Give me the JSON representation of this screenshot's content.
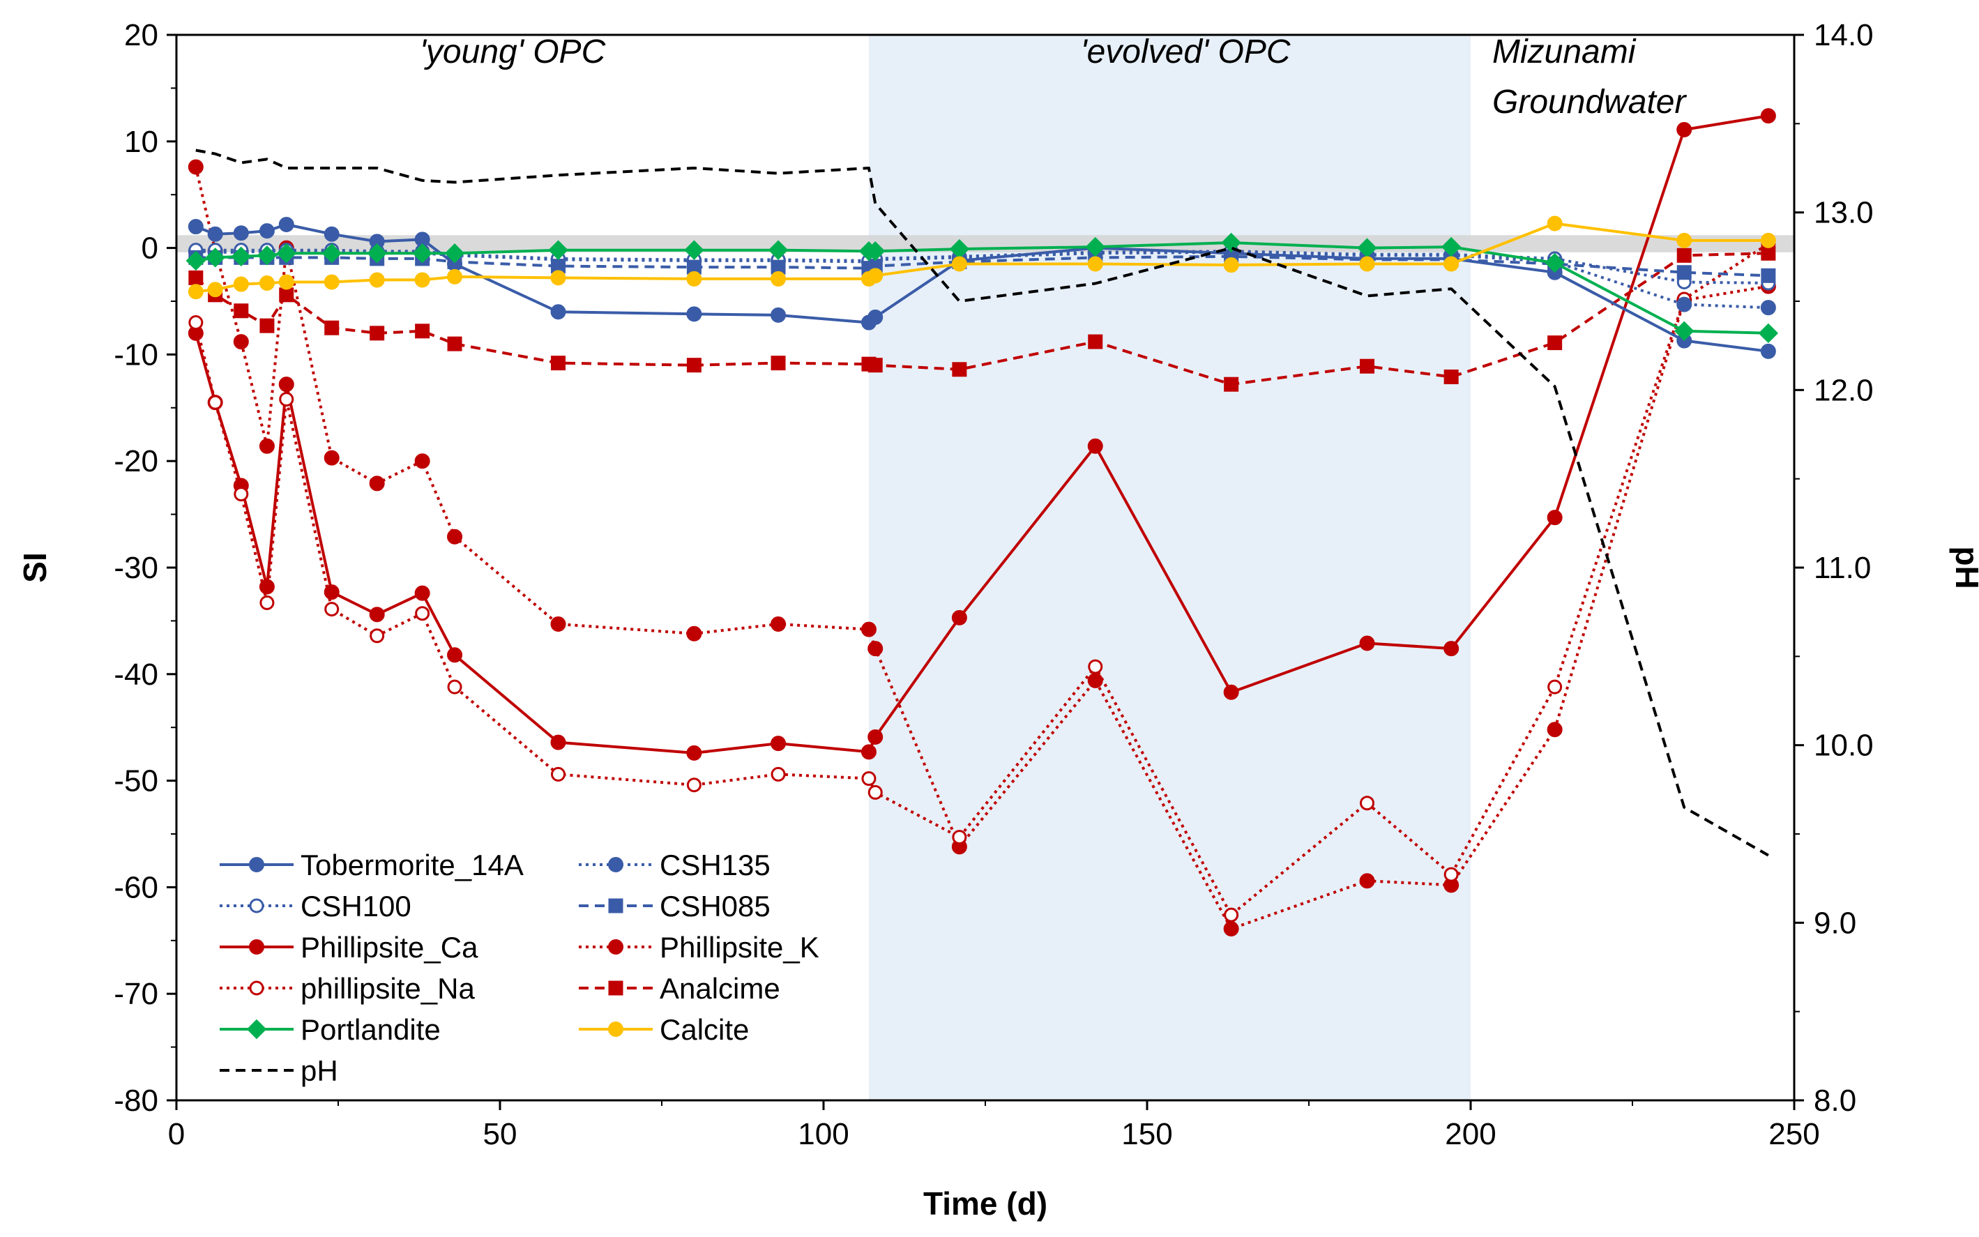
{
  "chart_data": {
    "type": "line",
    "xlabel": "Time (d)",
    "ylabel": "SI",
    "y2label": "pH",
    "xlim": [
      0,
      250
    ],
    "ylim": [
      -80,
      20
    ],
    "y2lim": [
      8.0,
      14.0
    ],
    "x_ticks": [
      "0",
      "50",
      "100",
      "150",
      "200",
      "250"
    ],
    "y_ticks": [
      "-80",
      "-70",
      "-60",
      "-50",
      "-40",
      "-30",
      "-20",
      "-10",
      "0",
      "10",
      "20"
    ],
    "y2_ticks": [
      "8.0",
      "9.0",
      "10.0",
      "11.0",
      "12.0",
      "13.0",
      "14.0"
    ],
    "regions": [
      {
        "label": "'young' OPC",
        "x": [
          0,
          107
        ]
      },
      {
        "label": "'evolved' OPC",
        "x": [
          107,
          200
        ],
        "shaded": true
      },
      {
        "label": "Mizunami",
        "label2": "Groundwater",
        "x": [
          200,
          250
        ]
      }
    ],
    "legend_position": "bottom-left",
    "series": [
      {
        "name": "Tobermorite_14A",
        "color": "#3a5ca8",
        "dash": "solid",
        "marker": "circle",
        "x": [
          3,
          6,
          10,
          14,
          17,
          24,
          31,
          38,
          43,
          59,
          80,
          93,
          107,
          108,
          121,
          142,
          163,
          184,
          197,
          213,
          233,
          246
        ],
        "y": [
          2.0,
          1.3,
          1.4,
          1.6,
          2.2,
          1.3,
          0.6,
          0.8,
          -1.5,
          -6.0,
          -6.2,
          -6.3,
          -7.0,
          -6.5,
          -1.2,
          0.0,
          -0.5,
          -1.0,
          -1.0,
          -2.3,
          -8.7,
          -9.7
        ]
      },
      {
        "name": "CSH135",
        "color": "#3a5ca8",
        "dash": "dotted",
        "marker": "circle",
        "x": [
          3,
          6,
          10,
          14,
          17,
          24,
          31,
          38,
          43,
          59,
          80,
          93,
          107,
          108,
          121,
          142,
          163,
          184,
          197,
          213,
          233,
          246
        ],
        "y": [
          -0.3,
          -0.4,
          -0.4,
          -0.3,
          -0.3,
          -0.4,
          -0.4,
          -0.5,
          -0.7,
          -1.1,
          -1.2,
          -1.2,
          -1.3,
          -1.1,
          -0.9,
          -0.5,
          -0.4,
          -0.7,
          -0.7,
          -1.3,
          -5.3,
          -5.6
        ]
      },
      {
        "name": "CSH100",
        "color": "#3a5ca8",
        "dash": "dotted",
        "marker": "open-circle",
        "x": [
          3,
          6,
          10,
          14,
          17,
          24,
          31,
          38,
          43,
          59,
          80,
          93,
          107,
          108,
          121,
          142,
          163,
          184,
          197,
          213,
          233,
          246
        ],
        "y": [
          -0.2,
          -0.2,
          -0.2,
          -0.2,
          -0.2,
          -0.2,
          -0.3,
          -0.3,
          -0.6,
          -1.0,
          -1.1,
          -1.1,
          -1.2,
          -1.0,
          -0.8,
          -0.4,
          -0.3,
          -0.6,
          -0.6,
          -1.0,
          -3.2,
          -3.3
        ]
      },
      {
        "name": "CSH085",
        "color": "#3a5ca8",
        "dash": "dashed",
        "marker": "square",
        "x": [
          3,
          6,
          10,
          14,
          17,
          24,
          31,
          38,
          43,
          59,
          80,
          93,
          107,
          108,
          121,
          142,
          163,
          184,
          197,
          213,
          233,
          246
        ],
        "y": [
          -0.9,
          -0.9,
          -0.9,
          -0.9,
          -0.9,
          -0.9,
          -1.0,
          -1.0,
          -1.3,
          -1.7,
          -1.8,
          -1.8,
          -1.9,
          -1.7,
          -1.3,
          -0.9,
          -0.8,
          -1.1,
          -1.1,
          -1.5,
          -2.3,
          -2.6
        ]
      },
      {
        "name": "Phillipsite_Ca",
        "color": "#c00000",
        "dash": "solid",
        "marker": "circle",
        "x": [
          3,
          6,
          10,
          14,
          17,
          24,
          31,
          38,
          43,
          59,
          80,
          93,
          107,
          108,
          121,
          142,
          163,
          184,
          197,
          213,
          233,
          246
        ],
        "y": [
          -8.0,
          -14.5,
          -22.3,
          -31.8,
          -12.8,
          -32.3,
          -34.4,
          -32.4,
          -38.2,
          -46.4,
          -47.4,
          -46.5,
          -47.3,
          -45.9,
          -34.7,
          -18.6,
          -41.7,
          -37.1,
          -37.6,
          -25.3,
          11.1,
          12.4
        ]
      },
      {
        "name": "Phillipsite_K",
        "color": "#c00000",
        "dash": "dotted",
        "marker": "circle",
        "x": [
          3,
          6,
          10,
          14,
          17,
          24,
          31,
          38,
          43,
          59,
          80,
          93,
          107,
          108,
          121,
          142,
          163,
          184,
          197,
          213,
          233,
          246
        ],
        "y": [
          7.6,
          -0.3,
          -8.8,
          -18.6,
          0.0,
          -19.7,
          -22.1,
          -20.0,
          -27.1,
          -35.3,
          -36.2,
          -35.3,
          -35.8,
          -37.6,
          -56.2,
          -40.6,
          -63.9,
          -59.4,
          -59.8,
          -45.2,
          -4.9,
          -3.6
        ]
      },
      {
        "name": "phillipsite_Na",
        "color": "#c00000",
        "dash": "dotted",
        "marker": "open-circle",
        "x": [
          3,
          6,
          10,
          14,
          17,
          24,
          31,
          38,
          43,
          59,
          80,
          93,
          107,
          108,
          121,
          142,
          163,
          184,
          197,
          213,
          233,
          246
        ],
        "y": [
          -7.0,
          -14.5,
          -23.1,
          -33.3,
          -14.2,
          -33.9,
          -36.4,
          -34.3,
          -41.2,
          -49.4,
          -50.4,
          -49.4,
          -49.8,
          -51.1,
          -55.3,
          -39.3,
          -62.6,
          -52.1,
          -58.8,
          -41.2,
          -4.8,
          0.4
        ]
      },
      {
        "name": "Analcime",
        "color": "#c00000",
        "dash": "dashed",
        "marker": "square",
        "x": [
          3,
          6,
          10,
          14,
          17,
          24,
          31,
          38,
          43,
          59,
          80,
          93,
          107,
          108,
          121,
          142,
          163,
          184,
          197,
          213,
          233,
          246
        ],
        "y": [
          -2.8,
          -4.4,
          -5.9,
          -7.3,
          -4.4,
          -7.5,
          -8.0,
          -7.8,
          -9.0,
          -10.8,
          -11.0,
          -10.8,
          -10.9,
          -11.0,
          -11.4,
          -8.8,
          -12.8,
          -11.1,
          -12.1,
          -8.9,
          -0.7,
          -0.5
        ]
      },
      {
        "name": "Portlandite",
        "color": "#00b050",
        "dash": "solid",
        "marker": "diamond",
        "x": [
          3,
          6,
          10,
          14,
          17,
          24,
          31,
          38,
          43,
          59,
          80,
          93,
          107,
          108,
          121,
          142,
          163,
          184,
          197,
          213,
          233,
          246
        ],
        "y": [
          -1.2,
          -0.9,
          -0.8,
          -0.7,
          -0.5,
          -0.5,
          -0.5,
          -0.5,
          -0.5,
          -0.2,
          -0.2,
          -0.2,
          -0.3,
          -0.3,
          -0.1,
          0.1,
          0.5,
          0.0,
          0.1,
          -1.4,
          -7.8,
          -8.0
        ]
      },
      {
        "name": "Calcite",
        "color": "#ffc000",
        "dash": "solid",
        "marker": "circle",
        "x": [
          3,
          6,
          10,
          14,
          17,
          24,
          31,
          38,
          43,
          59,
          80,
          93,
          107,
          108,
          121,
          142,
          163,
          184,
          197,
          213,
          233,
          246
        ],
        "y": [
          -4.1,
          -3.9,
          -3.4,
          -3.3,
          -3.2,
          -3.2,
          -3.0,
          -3.0,
          -2.7,
          -2.8,
          -2.9,
          -2.9,
          -2.9,
          -2.6,
          -1.5,
          -1.5,
          -1.6,
          -1.5,
          -1.5,
          2.3,
          0.7,
          0.7
        ]
      },
      {
        "name": "pH",
        "color": "#000000",
        "dash": "dashed",
        "marker": "none",
        "axis": "right",
        "x": [
          3,
          6,
          10,
          14,
          17,
          24,
          31,
          38,
          43,
          59,
          80,
          93,
          107,
          108,
          121,
          142,
          163,
          184,
          197,
          213,
          233,
          246
        ],
        "y": [
          13.35,
          13.33,
          13.28,
          13.3,
          13.25,
          13.25,
          13.25,
          13.18,
          13.17,
          13.21,
          13.25,
          13.22,
          13.25,
          13.05,
          12.5,
          12.6,
          12.8,
          12.53,
          12.57,
          12.02,
          9.65,
          9.38
        ]
      }
    ]
  }
}
